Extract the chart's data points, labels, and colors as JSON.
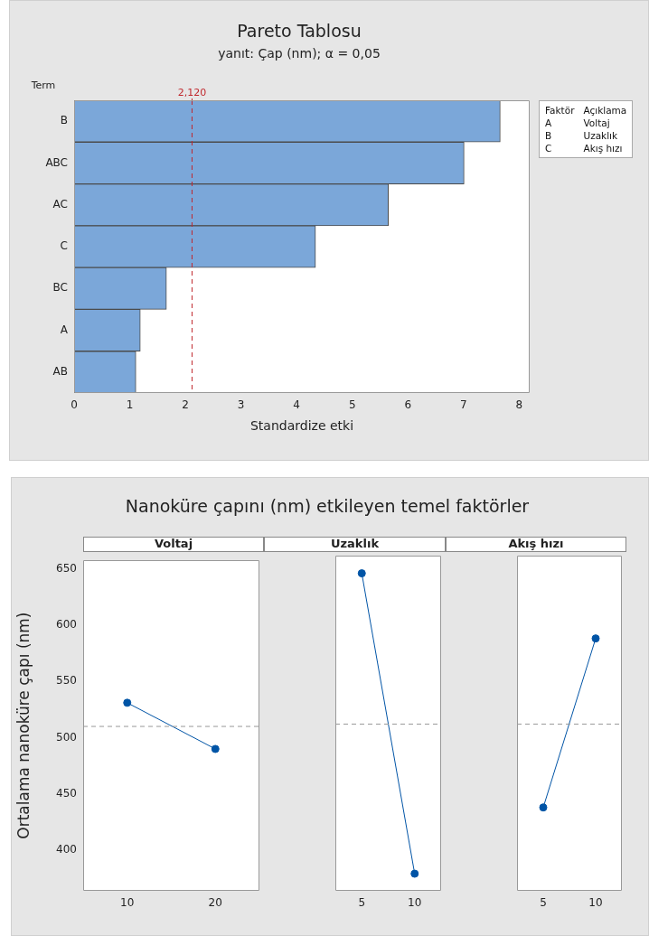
{
  "chart_data": [
    {
      "type": "bar",
      "orientation": "horizontal",
      "title": "Pareto Tablosu",
      "subtitle": "yanıt: Çap (nm); α = 0,05",
      "ylabel": "Term",
      "xlabel": "Standardize etki",
      "categories": [
        "B",
        "ABC",
        "AC",
        "C",
        "BC",
        "A",
        "AB"
      ],
      "values": [
        7.66,
        7.01,
        5.65,
        4.34,
        1.66,
        1.19,
        1.11
      ],
      "color": "#7ba7d9",
      "xlim": [
        0,
        8.19
      ],
      "xticks": [
        0,
        1,
        2,
        3,
        4,
        5,
        6,
        7,
        8
      ],
      "grid": false,
      "legend": false,
      "ref_lines": [
        {
          "axis": "x",
          "value": 2.12,
          "label": "2,120",
          "color": "#c0282d",
          "line_style": "dashed"
        }
      ],
      "annotations": [
        "Faktör",
        "Açıklama",
        "A",
        "Voltaj",
        "B",
        "Uzaklık",
        "C",
        "Akış hızı"
      ]
    },
    {
      "type": "line",
      "title": "Nanoküre çapını (nm) etkileyen temel faktörler",
      "subtitle": "Voltaj",
      "ylabel": "Ortalama nanoküre çapı (nm)",
      "categories": [
        "10",
        "20"
      ],
      "values": [
        531,
        490
      ],
      "color": "#0054a6",
      "marker": "circle",
      "line_style": "solid",
      "ylim": [
        364,
        657.5
      ],
      "yticks": [
        400,
        450,
        500,
        550,
        600,
        650
      ],
      "grid": false,
      "legend": false,
      "ref_lines": [
        {
          "axis": "y",
          "value": 510,
          "color": "#999999",
          "line_style": "dashed"
        }
      ]
    },
    {
      "type": "line",
      "subtitle": "Uzaklık",
      "categories": [
        "5",
        "10"
      ],
      "values": [
        642,
        379
      ],
      "color": "#0054a6",
      "marker": "circle",
      "line_style": "solid",
      "ylim": [
        364,
        657.5
      ],
      "yticks": [
        400,
        450,
        500,
        550,
        600,
        650
      ],
      "tick_labels": "x",
      "grid": false,
      "legend": false,
      "ref_lines": [
        {
          "axis": "y",
          "value": 510,
          "color": "#999999",
          "line_style": "dashed"
        }
      ]
    },
    {
      "type": "line",
      "subtitle": "Akış hızı",
      "categories": [
        "5",
        "10"
      ],
      "values": [
        437,
        585
      ],
      "color": "#0054a6",
      "marker": "circle",
      "line_style": "solid",
      "ylim": [
        364,
        657.5
      ],
      "yticks": [
        400,
        450,
        500,
        550,
        600,
        650
      ],
      "tick_labels": "x",
      "grid": false,
      "legend": false,
      "ref_lines": [
        {
          "axis": "y",
          "value": 510,
          "color": "#999999",
          "line_style": "dashed"
        }
      ]
    }
  ]
}
